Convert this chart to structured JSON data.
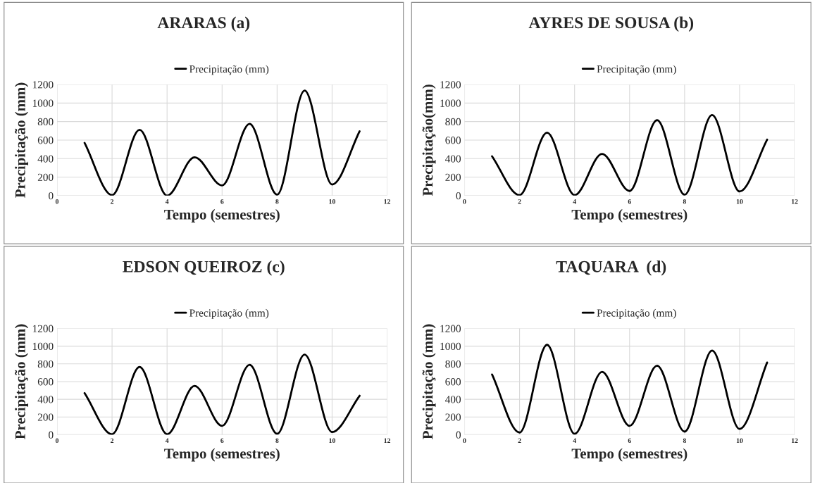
{
  "chart_data": [
    {
      "type": "line",
      "title": "ARARAS (a)",
      "xlabel": "Tempo (semestres)",
      "ylabel": "Precipitação (mm)",
      "x": [
        1,
        2,
        3,
        4,
        5,
        6,
        7,
        8,
        9,
        10,
        11
      ],
      "series": [
        {
          "name": "Precipitação (mm)",
          "color": "#000000",
          "values": [
            570,
            5,
            710,
            0,
            415,
            110,
            775,
            10,
            1135,
            120,
            695
          ]
        }
      ],
      "xlim": [
        0,
        12
      ],
      "xticks": [
        0,
        2,
        4,
        6,
        8,
        10,
        12
      ],
      "ylim": [
        0,
        1200
      ],
      "yticks": [
        0,
        200,
        400,
        600,
        800,
        1000,
        1200
      ],
      "grid": true,
      "legend": "top",
      "marker": "none",
      "line_style": "solid"
    },
    {
      "type": "line",
      "title": "AYRES DE SOUSA (b)",
      "xlabel": "Tempo (semestres)",
      "ylabel": "Precipitação(mm)",
      "x": [
        1,
        2,
        3,
        4,
        5,
        6,
        7,
        8,
        9,
        10,
        11
      ],
      "series": [
        {
          "name": "Precipitação (mm)",
          "color": "#000000",
          "values": [
            425,
            5,
            680,
            5,
            450,
            50,
            815,
            10,
            870,
            45,
            605
          ]
        }
      ],
      "xlim": [
        0,
        12
      ],
      "xticks": [
        0,
        2,
        4,
        6,
        8,
        10,
        12
      ],
      "ylim": [
        0,
        1200
      ],
      "yticks": [
        0,
        200,
        400,
        600,
        800,
        1000,
        1200
      ],
      "grid": true,
      "legend": "top",
      "marker": "none",
      "line_style": "solid"
    },
    {
      "type": "line",
      "title": "EDSON QUEIROZ (c)",
      "xlabel": "Tempo (semestres)",
      "ylabel": "Precipitação (mm)",
      "x": [
        1,
        2,
        3,
        4,
        5,
        6,
        7,
        8,
        9,
        10,
        11
      ],
      "series": [
        {
          "name": "Precipitação (mm)",
          "color": "#000000",
          "values": [
            470,
            5,
            765,
            5,
            550,
            100,
            790,
            10,
            905,
            30,
            440
          ]
        }
      ],
      "xlim": [
        0,
        12
      ],
      "xticks": [
        0,
        2,
        4,
        6,
        8,
        10,
        12
      ],
      "ylim": [
        0,
        1200
      ],
      "yticks": [
        0,
        200,
        400,
        600,
        800,
        1000,
        1200
      ],
      "grid": true,
      "legend": "top",
      "marker": "none",
      "line_style": "solid"
    },
    {
      "type": "line",
      "title": "TAQUARA  (d)",
      "xlabel": "Tempo (semestres)",
      "ylabel": "Precipitação (mm)",
      "x": [
        1,
        2,
        3,
        4,
        5,
        6,
        7,
        8,
        9,
        10,
        11
      ],
      "series": [
        {
          "name": "Precipitação (mm)",
          "color": "#000000",
          "values": [
            680,
            25,
            1015,
            10,
            710,
            100,
            780,
            35,
            950,
            65,
            815
          ]
        }
      ],
      "xlim": [
        0,
        12
      ],
      "xticks": [
        0,
        2,
        4,
        6,
        8,
        10,
        12
      ],
      "ylim": [
        0,
        1200
      ],
      "yticks": [
        0,
        200,
        400,
        600,
        800,
        1000,
        1200
      ],
      "grid": true,
      "legend": "top",
      "marker": "none",
      "line_style": "solid"
    }
  ]
}
